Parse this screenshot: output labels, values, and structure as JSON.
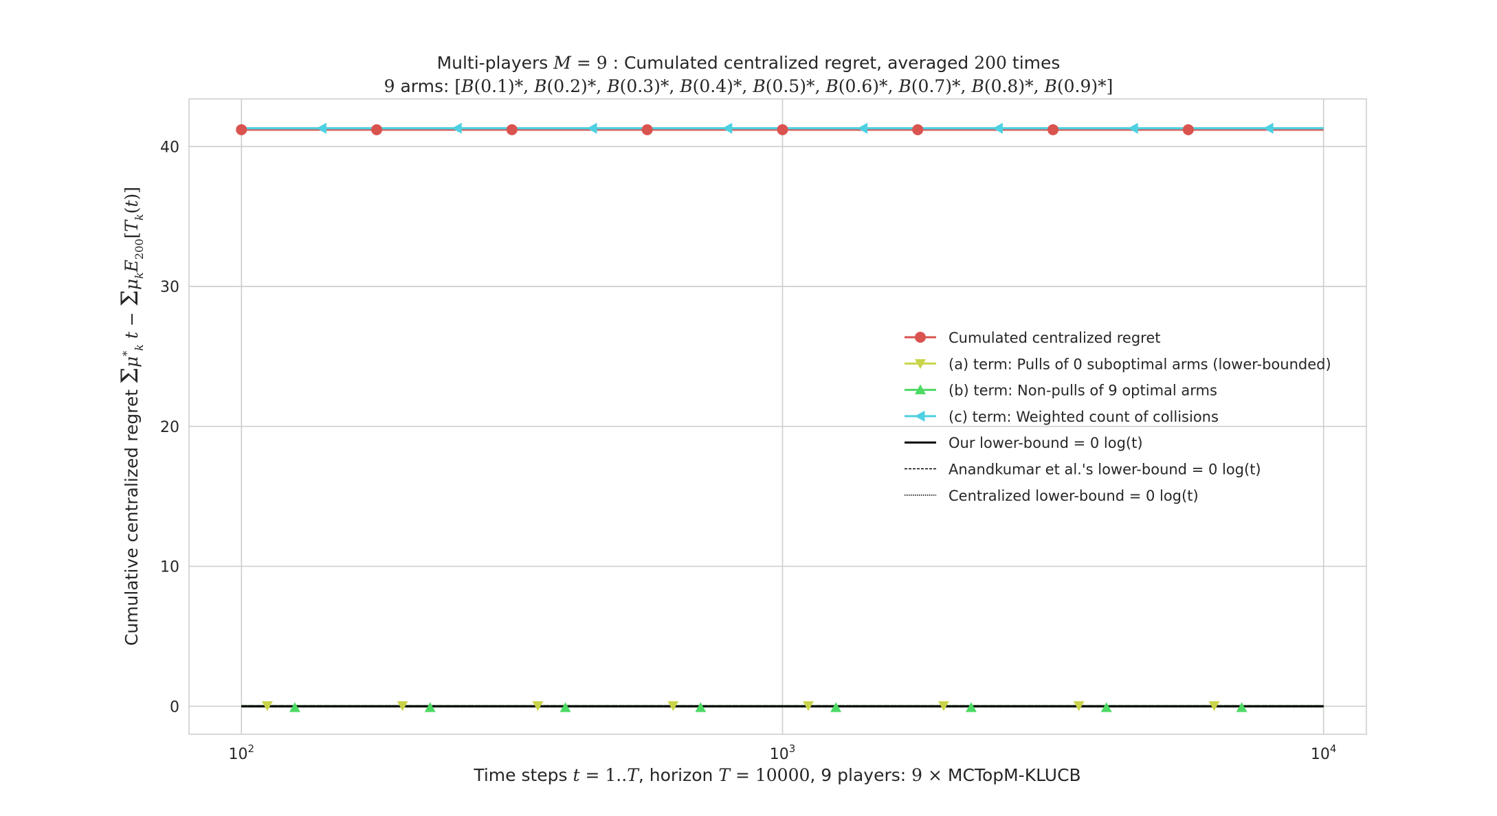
{
  "chart_data": {
    "type": "line",
    "title": "Multi-players M = 9 : Cumulated centralized regret, averaged 200 times",
    "subtitle": "9 arms: [B(0.1)*, B(0.2)*, B(0.3)*, B(0.4)*, B(0.5)*, B(0.6)*, B(0.7)*, B(0.8)*, B(0.9)*]",
    "xlabel": "Time steps t = 1..T, horizon T = 10000, 9 players: 9 × MCTopM-KLUCB",
    "ylabel": "Cumulative centralized regret Σ_{k=1}^{9} μ*_k t − Σ_{k=1}^{9} μ_k E_200[T_k(t)]",
    "x_scale": "log",
    "xlim": [
      80,
      12000
    ],
    "ylim": [
      -2,
      43.4
    ],
    "x_ticks": [
      {
        "value": 100,
        "base": "10",
        "exp": "2"
      },
      {
        "value": 1000,
        "base": "10",
        "exp": "3"
      },
      {
        "value": 10000,
        "base": "10",
        "exp": "4"
      }
    ],
    "y_ticks": [
      {
        "value": 0,
        "label": "0"
      },
      {
        "value": 10,
        "label": "10"
      },
      {
        "value": 20,
        "label": "20"
      },
      {
        "value": 30,
        "label": "30"
      },
      {
        "value": 40,
        "label": "40"
      }
    ],
    "grid": true,
    "legend_position": "center-right",
    "series": [
      {
        "name": "Cumulated centralized regret",
        "color": "#d9534f",
        "marker": "circle",
        "linestyle": "solid",
        "x": [
          100,
          10000
        ],
        "y": [
          41.2,
          41.2
        ],
        "marker_x": [
          100,
          177.8,
          316.2,
          562.3,
          1000,
          1778,
          3162,
          5623
        ]
      },
      {
        "name": "(a) term: Pulls of 0 suboptimal arms (lower-bounded)",
        "color": "#c9d44a",
        "marker": "triangle-down",
        "linestyle": "solid",
        "x": [
          100,
          10000
        ],
        "y": [
          0,
          0
        ],
        "marker_x": [
          111.6,
          198.5,
          353,
          627.7,
          1116,
          1985,
          3530,
          6277
        ]
      },
      {
        "name": "(b) term: Non-pulls of 9 optimal arms",
        "color": "#4cd964",
        "marker": "triangle-up",
        "linestyle": "solid",
        "x": [
          100,
          10000
        ],
        "y": [
          0,
          0
        ],
        "marker_x": [
          125.5,
          223.2,
          396.9,
          705.8,
          1255,
          2232,
          3969,
          7058
        ]
      },
      {
        "name": "(c) term: Weighted count of collisions",
        "color": "#4dd0e1",
        "marker": "triangle-left",
        "linestyle": "solid",
        "x": [
          100,
          10000
        ],
        "y": [
          41.3,
          41.3
        ],
        "marker_x": [
          140.9,
          250.6,
          445.6,
          792.4,
          1409,
          2506,
          4456,
          7924
        ]
      },
      {
        "name": "Our lower-bound = 0 log(t)",
        "color": "#000000",
        "marker": "none",
        "linestyle": "solid",
        "x": [
          100,
          10000
        ],
        "y": [
          0,
          0
        ]
      },
      {
        "name": "Anandkumar et al.'s lower-bound = 0 log(t)",
        "color": "#000000",
        "marker": "none",
        "linestyle": "dashed",
        "x": [
          100,
          10000
        ],
        "y": [
          0,
          0
        ]
      },
      {
        "name": "Centralized lower-bound = 0 log(t)",
        "color": "#000000",
        "marker": "none",
        "linestyle": "dotted",
        "x": [
          100,
          10000
        ],
        "y": [
          0,
          0
        ]
      }
    ]
  }
}
